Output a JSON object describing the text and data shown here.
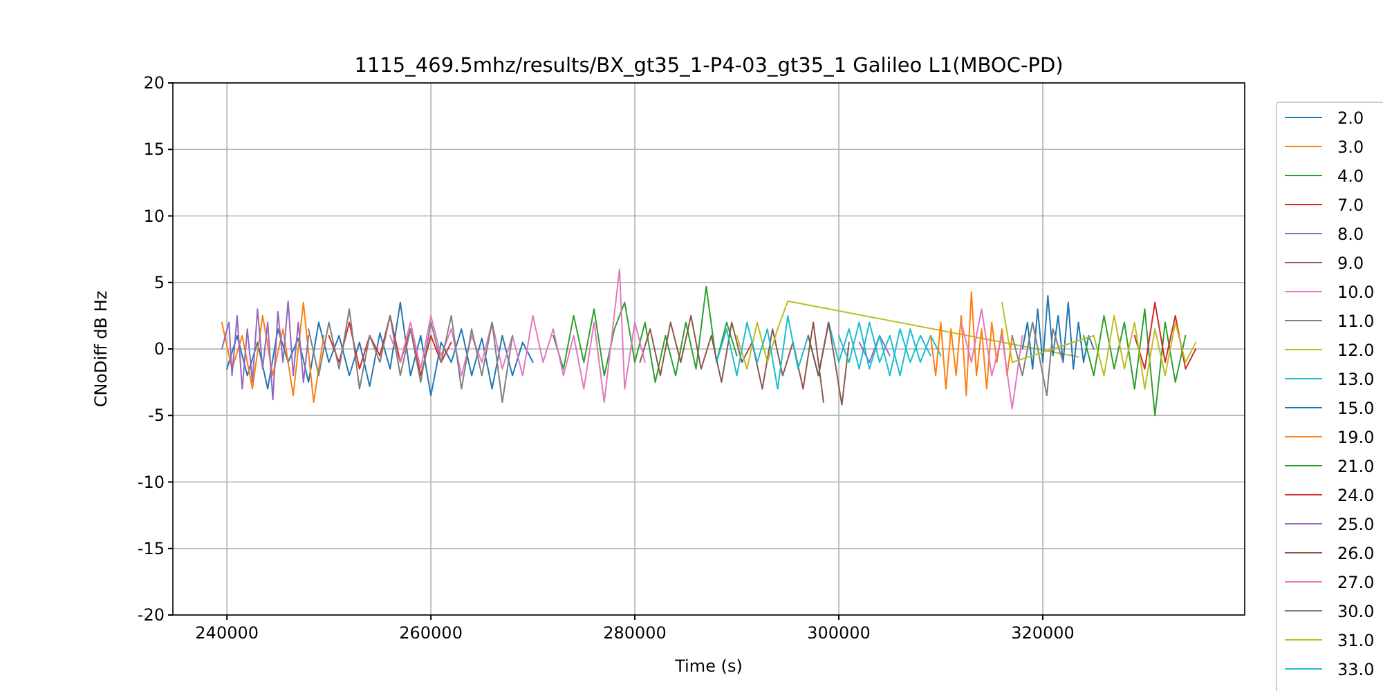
{
  "chart_data": {
    "type": "line",
    "title": "1115_469.5mhz/results/BX_gt35_1-P4-03_gt35_1 Galileo L1(MBOC-PD)",
    "xlabel": "Time (s)",
    "ylabel": "CNoDiff dB Hz",
    "xlim": [
      234700,
      339800
    ],
    "ylim": [
      -20,
      20
    ],
    "xticks": [
      240000,
      260000,
      280000,
      300000,
      320000
    ],
    "yticks": [
      -20,
      -15,
      -10,
      -5,
      0,
      5,
      10,
      15,
      20
    ],
    "grid": true,
    "legend": "right",
    "series": [
      {
        "name": "2.0",
        "color": "#1f77b4",
        "x": [
          240000,
          241000,
          242000,
          243000,
          244000,
          245000,
          246000,
          247000,
          248000,
          249000,
          250000,
          251000,
          252000,
          253000,
          254000,
          255000,
          256000,
          257000,
          258000,
          259000,
          260000,
          261000,
          262000,
          263000,
          264000,
          265000,
          266000,
          267000,
          268000,
          269000,
          270000
        ],
        "values": [
          -1.5,
          1,
          -2,
          0.5,
          -3,
          1.5,
          -1,
          0.8,
          -2.5,
          2,
          -1,
          1,
          -2,
          0.5,
          -2.8,
          1.2,
          -1.5,
          3.5,
          -2,
          1,
          -3.5,
          0.5,
          -1,
          1.5,
          -2,
          0.8,
          -3,
          1,
          -2,
          0.5,
          -1
        ]
      },
      {
        "name": "3.0",
        "color": "#ff7f0e",
        "x": [
          239500,
          240500,
          241500,
          242500,
          243500,
          244500,
          245500,
          246500,
          247500,
          248500,
          249500
        ],
        "values": [
          2,
          -1.5,
          1,
          -3,
          2.5,
          -2,
          1.5,
          -3.5,
          3.5,
          -4,
          1
        ]
      },
      {
        "name": "4.0",
        "color": "#2ca02c",
        "x": [
          272000,
          273000,
          274000,
          275000,
          276000,
          277000,
          278000,
          279000,
          280000,
          281000,
          282000,
          283000,
          284000,
          285000,
          286000,
          287000,
          288000,
          289000,
          290000
        ],
        "values": [
          1,
          -1.5,
          2.5,
          -1,
          3,
          -2,
          1.5,
          3.5,
          -1,
          2,
          -2.5,
          1,
          -2,
          2,
          -1.5,
          4.7,
          -1,
          2,
          -0.5
        ]
      },
      {
        "name": "7.0",
        "color": "#d62728",
        "x": [
          250000,
          251000,
          252000,
          253000,
          254000,
          255000,
          256000,
          257000,
          258000,
          259000,
          260000,
          261000,
          262000
        ],
        "values": [
          1,
          -1,
          2,
          -1.5,
          1,
          -0.5,
          2.5,
          -1,
          1.5,
          -2,
          1,
          -1,
          0.5
        ]
      },
      {
        "name": "8.0",
        "color": "#9467bd",
        "x": [
          239500,
          240200,
          240500,
          241000,
          241500,
          242000,
          242500,
          243000,
          243500,
          244000,
          244500,
          245000,
          245500,
          246000,
          246500,
          247000,
          247500,
          248000
        ],
        "values": [
          0,
          2,
          -2,
          2.5,
          -3,
          1.5,
          -2.5,
          3,
          -1.5,
          2,
          -3.8,
          2.8,
          -1,
          3.6,
          -2,
          2,
          -2.5,
          1
        ]
      },
      {
        "name": "9.0",
        "color": "#8c564b",
        "x": [
          280500,
          281500,
          282500,
          283500,
          284500,
          285500,
          286500,
          287500,
          288500,
          289500,
          290500,
          291500,
          292500,
          293500,
          294500,
          295500,
          296500,
          297500,
          298500
        ],
        "values": [
          -1,
          1.5,
          -2,
          2,
          -1,
          2.5,
          -1.5,
          1,
          -2.5,
          2,
          -1,
          0.5,
          -3,
          1.5,
          -2,
          0.5,
          -3,
          2,
          -4
        ]
      },
      {
        "name": "10.0",
        "color": "#e377c2",
        "x": [
          256000,
          257000,
          258000,
          259000,
          260000,
          261000,
          262000,
          263000,
          264000,
          265000,
          266000,
          267000,
          268000,
          269000,
          270000,
          271000,
          272000,
          273000,
          274000,
          275000,
          276000,
          277000,
          278500,
          279000,
          280000,
          281000
        ],
        "values": [
          1,
          -1,
          2,
          -1.5,
          2.5,
          -0.5,
          1.5,
          -2,
          1,
          -1,
          2,
          -1.5,
          1,
          -2,
          2.5,
          -1,
          1.5,
          -2,
          1,
          -3,
          2,
          -4,
          6,
          -3,
          2,
          -1
        ]
      },
      {
        "name": "11.0",
        "color": "#7f7f7f",
        "x": [
          248000,
          249000,
          250000,
          251000,
          252000,
          253000,
          254000,
          255000,
          256000,
          257000,
          258000,
          259000,
          260000,
          261000,
          262000,
          263000,
          264000,
          265000,
          266000,
          267000,
          268000
        ],
        "values": [
          1.5,
          -2,
          2,
          -1.5,
          3,
          -3,
          1,
          -1,
          2.5,
          -2,
          1.5,
          -2.5,
          2,
          -1,
          2.5,
          -3,
          1.5,
          -2,
          2,
          -4,
          1
        ]
      },
      {
        "name": "12.0",
        "color": "#bcbd22",
        "x": [
          290000,
          291000,
          292000,
          293000,
          294000,
          295000,
          323500
        ],
        "values": [
          1,
          -1.5,
          2,
          -1,
          1.5,
          3.6,
          -0.6
        ]
      },
      {
        "name": "13.0",
        "color": "#17becf",
        "x": [
          288000,
          289000,
          290000,
          291000,
          292000,
          293000,
          294000,
          295000,
          296000,
          297000,
          298000,
          299000,
          300000,
          301000,
          302000,
          303000,
          304000,
          305000,
          306000,
          307000,
          308000,
          309000,
          310000
        ],
        "values": [
          -1,
          1.5,
          -2,
          2,
          -1,
          1.5,
          -3,
          2.5,
          -1.5,
          1,
          -2,
          2,
          -1,
          1.5,
          -1.5,
          2,
          -1,
          1,
          -2,
          1.5,
          -1,
          1,
          -0.5
        ]
      },
      {
        "name": "15.0",
        "color": "#1f77b4",
        "x": [
          318000,
          318500,
          319000,
          319500,
          320000,
          320500,
          321000,
          321500,
          322000,
          322500,
          323000,
          323500,
          324000,
          324500,
          325000
        ],
        "values": [
          0,
          2,
          -1.5,
          3,
          -1,
          4,
          -0.5,
          2.5,
          -1,
          3.5,
          -1.5,
          2,
          -1,
          1,
          0
        ]
      },
      {
        "name": "19.0",
        "color": "#ff7f0e",
        "x": [
          309000,
          309500,
          310000,
          310500,
          311000,
          311500,
          312000,
          312500,
          313000,
          313500,
          314000,
          314500,
          315000,
          315500,
          316000,
          316500,
          317000
        ],
        "values": [
          1,
          -2,
          2,
          -3,
          1.5,
          -2,
          2.5,
          -3.5,
          4.3,
          -2,
          1.5,
          -3,
          2,
          -1,
          1.5,
          -2,
          1
        ]
      },
      {
        "name": "21.0",
        "color": "#2ca02c",
        "x": [
          324000,
          325000,
          326000,
          327000,
          328000,
          329000,
          330000,
          331000,
          332000,
          333000,
          334000
        ],
        "values": [
          1,
          -2,
          2.5,
          -1.5,
          2,
          -3,
          3,
          -5,
          2,
          -2.5,
          1
        ]
      },
      {
        "name": "24.0",
        "color": "#d62728",
        "x": [
          329000,
          330000,
          331000,
          332000,
          333000,
          334000,
          335000
        ],
        "values": [
          1,
          -1.5,
          3.5,
          -1,
          2.5,
          -1.5,
          0
        ]
      },
      {
        "name": "25.0",
        "color": "#9467bd",
        "x": [
          302000,
          303000,
          304000,
          305000
        ],
        "values": [
          0.5,
          -1,
          1,
          -0.5
        ]
      },
      {
        "name": "26.0",
        "color": "#8c564b",
        "x": [
          297000,
          298000,
          299000,
          300300,
          301000
        ],
        "values": [
          1,
          -2,
          2,
          -4.2,
          0.5
        ]
      },
      {
        "name": "27.0",
        "color": "#e377c2",
        "x": [
          312000,
          313000,
          314000,
          315000,
          316000,
          317000,
          318000
        ],
        "values": [
          2,
          -1,
          3,
          -2,
          1,
          -4.5,
          1
        ]
      },
      {
        "name": "30.0",
        "color": "#7f7f7f",
        "x": [
          317000,
          318000,
          319000,
          320400,
          321000,
          322000
        ],
        "values": [
          1,
          -2,
          2,
          -3.5,
          1.5,
          -1
        ]
      },
      {
        "name": "31.0",
        "color": "#bcbd22",
        "x": [
          316000,
          317000,
          325000,
          326000,
          327000,
          328000,
          329000,
          330000,
          331000,
          332000,
          333000,
          334000,
          335000
        ],
        "values": [
          3.5,
          -1,
          1,
          -2,
          2.5,
          -1.5,
          2,
          -3,
          1.5,
          -2,
          2,
          -1,
          0.5
        ]
      },
      {
        "name": "33.0",
        "color": "#17becf",
        "x": [
          300000,
          301000,
          302000,
          303000,
          304000,
          305000,
          306000,
          307000,
          308000,
          309000
        ],
        "values": [
          1,
          -1,
          2,
          -1.5,
          1,
          -2,
          1.5,
          -1,
          1,
          -0.5
        ]
      }
    ]
  }
}
